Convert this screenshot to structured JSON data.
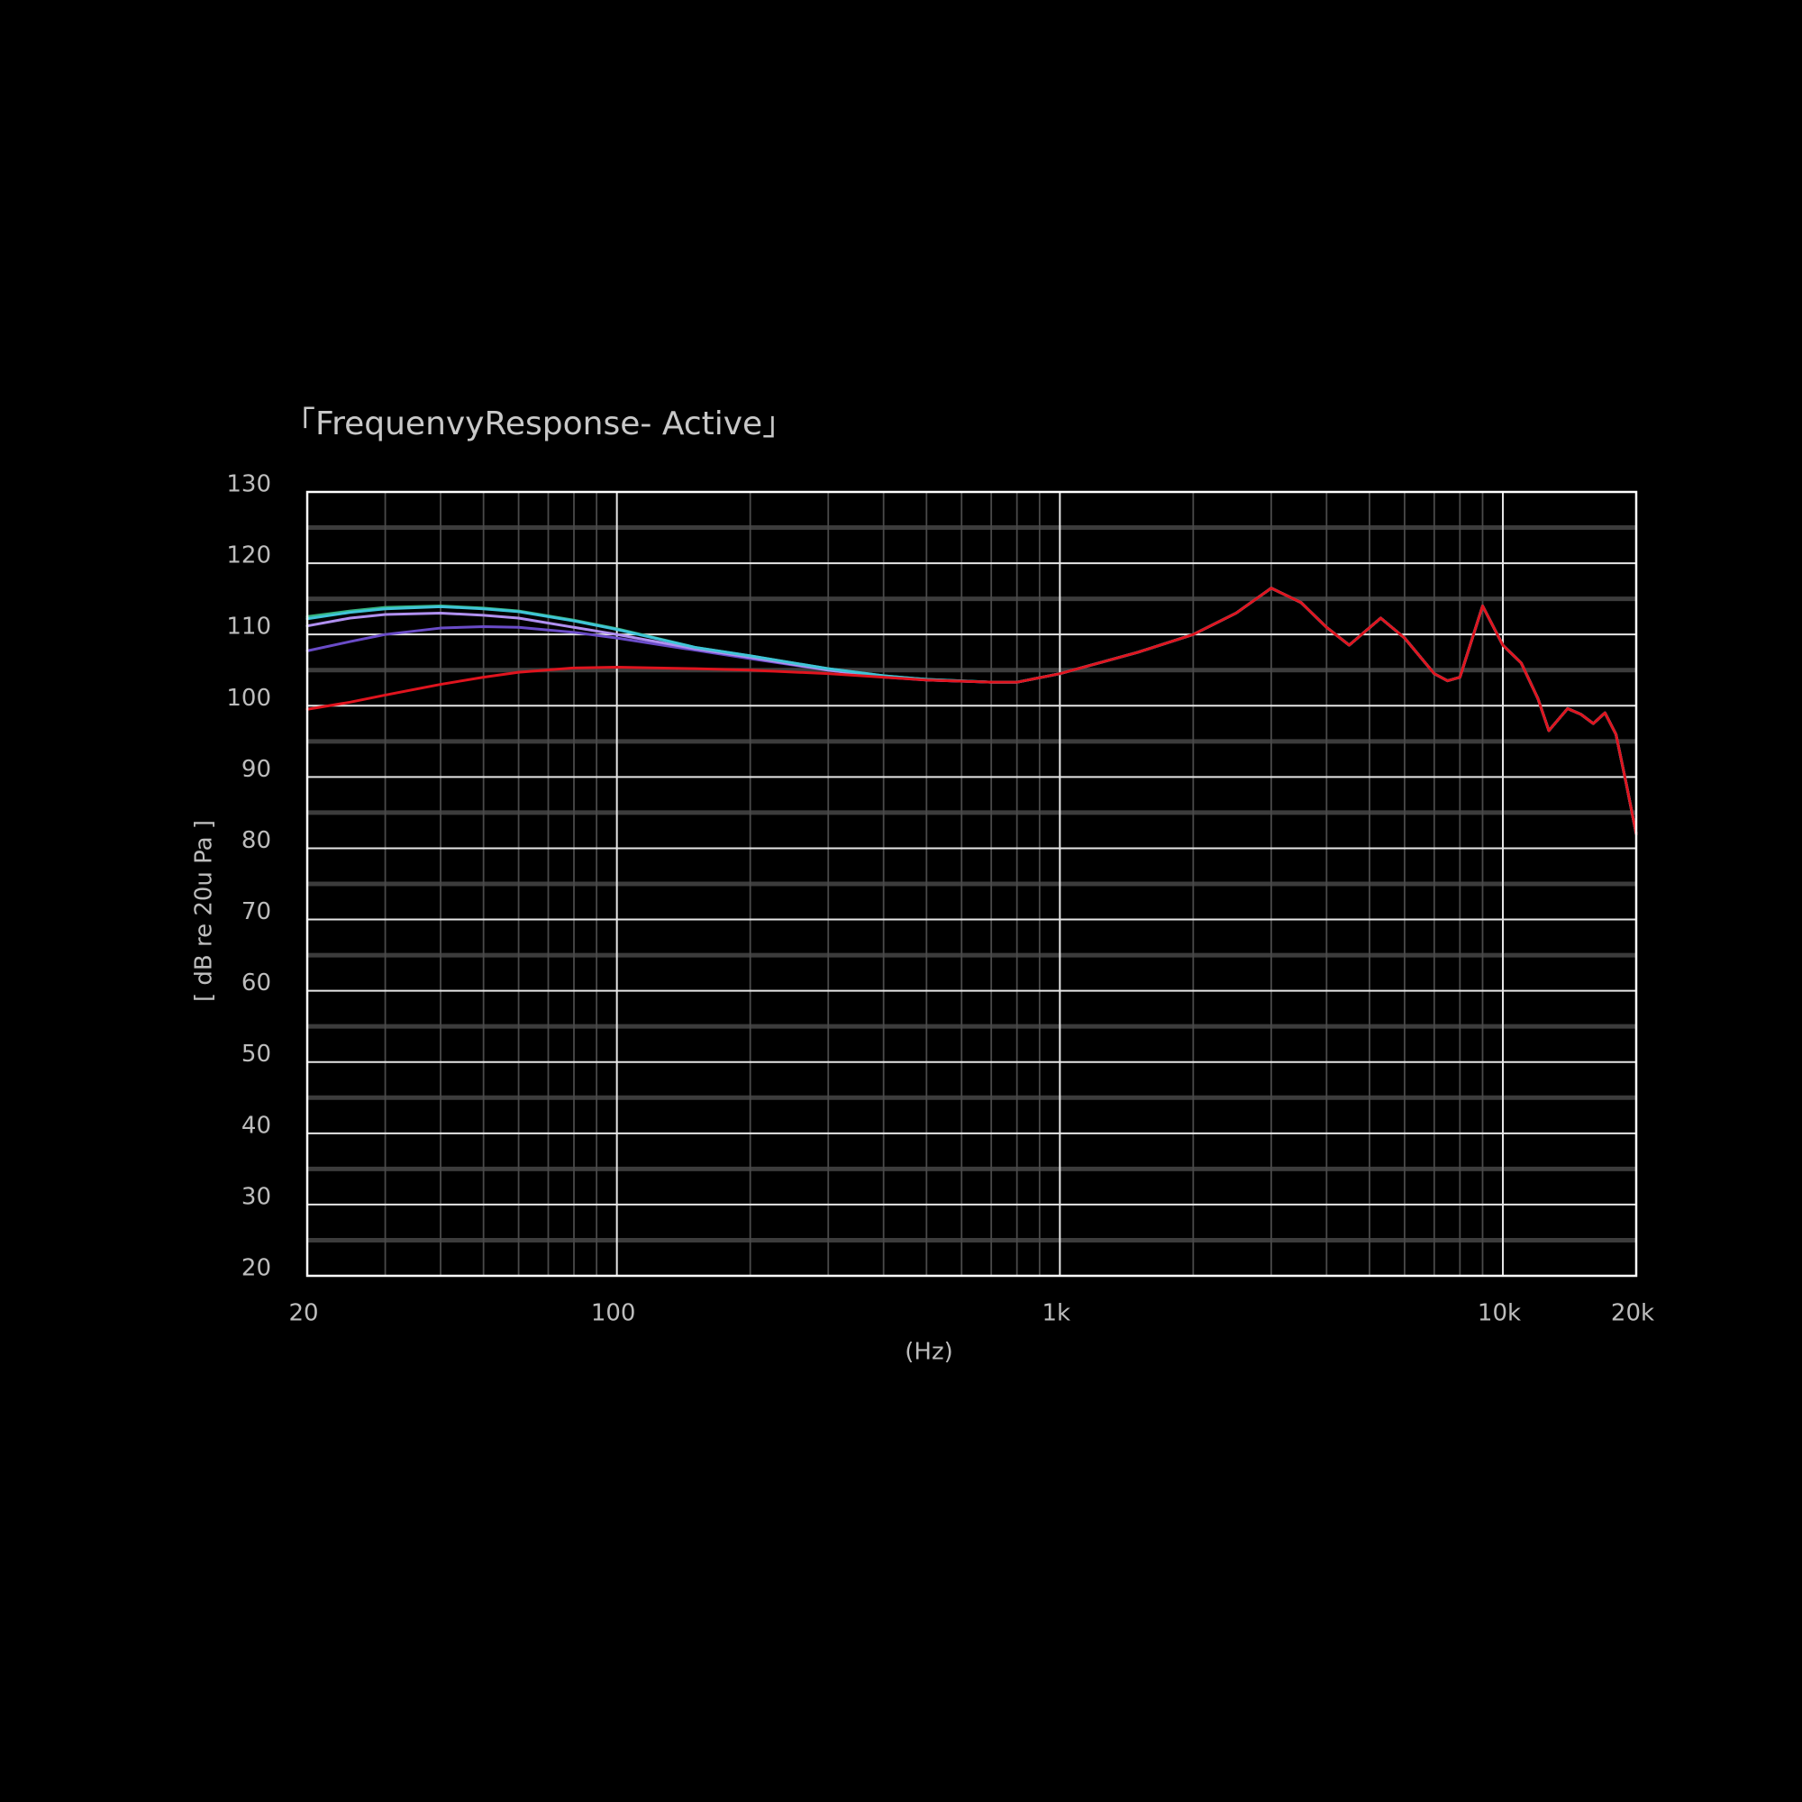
{
  "chart_data": {
    "type": "line",
    "title": "「FrequenvyResponse- Active」",
    "x_label": "(Hz)",
    "y_label": "[ dB re 20u Pa ]",
    "xscale": "log",
    "grid": true,
    "xlim": [
      20,
      20000
    ],
    "xticks": [
      20,
      100,
      {
        "value": 1000,
        "label": "1k"
      },
      {
        "value": 10000,
        "label": "10k"
      },
      {
        "value": 20000,
        "label": "20k"
      }
    ],
    "minor_xticks": [
      30,
      40,
      50,
      60,
      70,
      80,
      90,
      200,
      300,
      400,
      500,
      600,
      700,
      800,
      900,
      2000,
      3000,
      4000,
      5000,
      6000,
      7000,
      8000,
      9000
    ],
    "ylim": [
      20,
      130
    ],
    "yticks": [
      20,
      30,
      40,
      50,
      60,
      70,
      80,
      90,
      100,
      110,
      120,
      130
    ],
    "minor_yticks": [
      25,
      35,
      45,
      55,
      65,
      75,
      85,
      95,
      105,
      115,
      125
    ],
    "x": [
      20,
      25,
      30,
      40,
      50,
      60,
      80,
      100,
      150,
      200,
      300,
      400,
      500,
      700,
      800,
      1000,
      1500,
      2000,
      2500,
      3000,
      3500,
      4000,
      4500,
      5300,
      6000,
      7000,
      7500,
      8000,
      9000,
      10000,
      11000,
      12000,
      12700,
      14000,
      15000,
      16000,
      17000,
      18000,
      19000,
      20000
    ],
    "series": [
      {
        "color": "#6a4cc8",
        "values": [
          107.7,
          109,
          110,
          110.9,
          111.1,
          111,
          110.3,
          109.5,
          107.8,
          106.6,
          105,
          104,
          103.6,
          103.3,
          103.3,
          104.5,
          107.5,
          110,
          113,
          116.5,
          114.5,
          111,
          108.5,
          112.3,
          109.5,
          104.5,
          103.5,
          104,
          114,
          108.5,
          106,
          101,
          96.5,
          99.6,
          98.8,
          97.5,
          99,
          96,
          89,
          82
        ]
      },
      {
        "color": "#b090f0",
        "values": [
          111.2,
          112.3,
          112.8,
          113,
          112.7,
          112.3,
          111,
          110,
          108,
          106.8,
          105,
          104.1,
          103.6,
          103.3,
          103.3,
          104.5,
          107.5,
          110,
          113,
          116.5,
          114.5,
          111,
          108.5,
          112.3,
          109.5,
          104.5,
          103.5,
          104,
          114,
          108.5,
          106,
          101,
          96.5,
          99.6,
          98.8,
          97.5,
          99,
          96,
          89,
          82
        ]
      },
      {
        "color": "#36b37e",
        "values": [
          112.5,
          113.3,
          113.8,
          114,
          113.7,
          113.3,
          112,
          110.8,
          108.2,
          107,
          105.2,
          104.2,
          103.7,
          103.3,
          103.3,
          104.5,
          107.5,
          110,
          113,
          116.5,
          114.5,
          111,
          108.5,
          112.3,
          109.5,
          104.5,
          103.5,
          104,
          114,
          108.5,
          106,
          101,
          96.5,
          99.6,
          98.8,
          97.5,
          99,
          96,
          89,
          82
        ]
      },
      {
        "color": "#40c4d8",
        "values": [
          112.2,
          113.1,
          113.6,
          113.9,
          113.6,
          113.2,
          111.9,
          110.7,
          108.2,
          107,
          105.2,
          104.2,
          103.7,
          103.3,
          103.3,
          104.5,
          107.5,
          110,
          113,
          116.5,
          114.5,
          111,
          108.5,
          112.3,
          109.5,
          104.5,
          103.5,
          104,
          114,
          108.5,
          106,
          101,
          96.5,
          99.6,
          98.8,
          97.5,
          99,
          96,
          89,
          82
        ]
      },
      {
        "color": "#e0141e",
        "values": [
          99.5,
          100.5,
          101.5,
          103,
          104,
          104.7,
          105.3,
          105.4,
          105.2,
          105,
          104.5,
          104,
          103.6,
          103.3,
          103.3,
          104.5,
          107.5,
          110,
          113,
          116.5,
          114.5,
          111,
          108.5,
          112.3,
          109.5,
          104.5,
          103.5,
          104,
          114,
          108.5,
          106,
          101,
          96.5,
          99.6,
          98.8,
          97.5,
          99,
          96,
          89,
          82
        ]
      }
    ]
  }
}
